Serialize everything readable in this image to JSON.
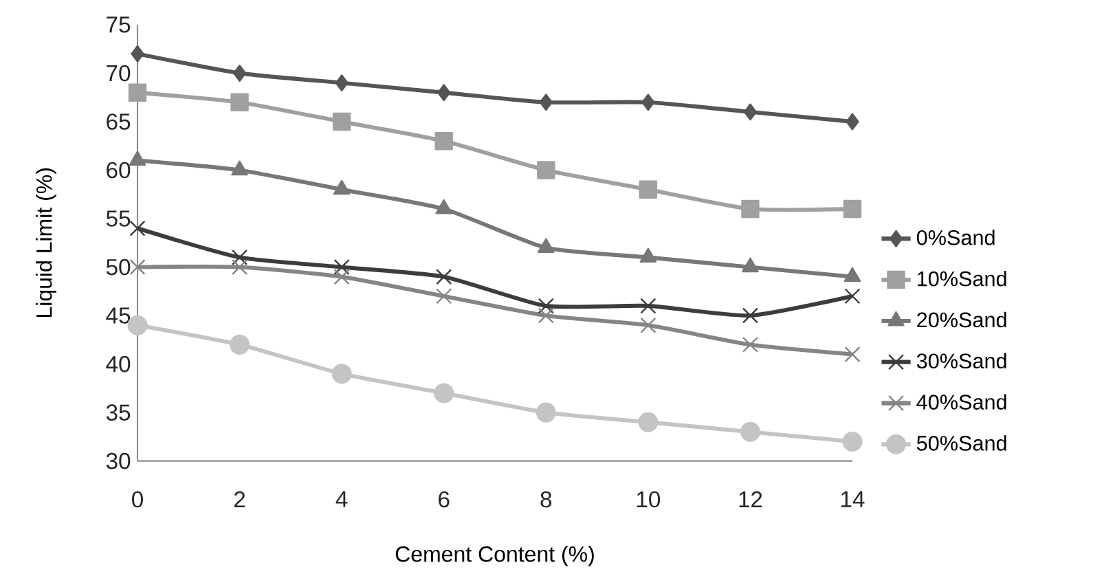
{
  "chart_data": {
    "type": "line",
    "xlabel": "Cement Content (%)",
    "ylabel": "Liquid Limit (%)",
    "x": [
      0,
      2,
      4,
      6,
      8,
      10,
      12,
      14
    ],
    "xlim": [
      0,
      14
    ],
    "xticks": [
      0,
      2,
      4,
      6,
      8,
      10,
      12,
      14
    ],
    "ylim": [
      30,
      75
    ],
    "yticks": [
      30,
      35,
      40,
      45,
      50,
      55,
      60,
      65,
      70,
      75
    ],
    "grid": false,
    "legend": "right",
    "series": [
      {
        "name": "0%Sand",
        "color": "#555555",
        "marker": "diamond",
        "values": [
          72,
          70,
          69,
          68,
          67,
          67,
          66,
          65
        ]
      },
      {
        "name": "10%Sand",
        "color": "#a0a0a0",
        "marker": "square",
        "values": [
          68,
          67,
          65,
          63,
          60,
          58,
          56,
          56
        ]
      },
      {
        "name": "20%Sand",
        "color": "#777777",
        "marker": "triangle",
        "values": [
          61,
          60,
          58,
          56,
          52,
          51,
          50,
          49
        ]
      },
      {
        "name": "30%Sand",
        "color": "#3c3c3c",
        "marker": "cross",
        "values": [
          54,
          51,
          50,
          49,
          46,
          46,
          45,
          47
        ]
      },
      {
        "name": "40%Sand",
        "color": "#858585",
        "marker": "cross",
        "values": [
          50,
          50,
          49,
          47,
          45,
          44,
          42,
          41
        ]
      },
      {
        "name": "50%Sand",
        "color": "#c4c4c4",
        "marker": "circle",
        "values": [
          44,
          42,
          39,
          37,
          35,
          34,
          33,
          32
        ]
      }
    ]
  }
}
